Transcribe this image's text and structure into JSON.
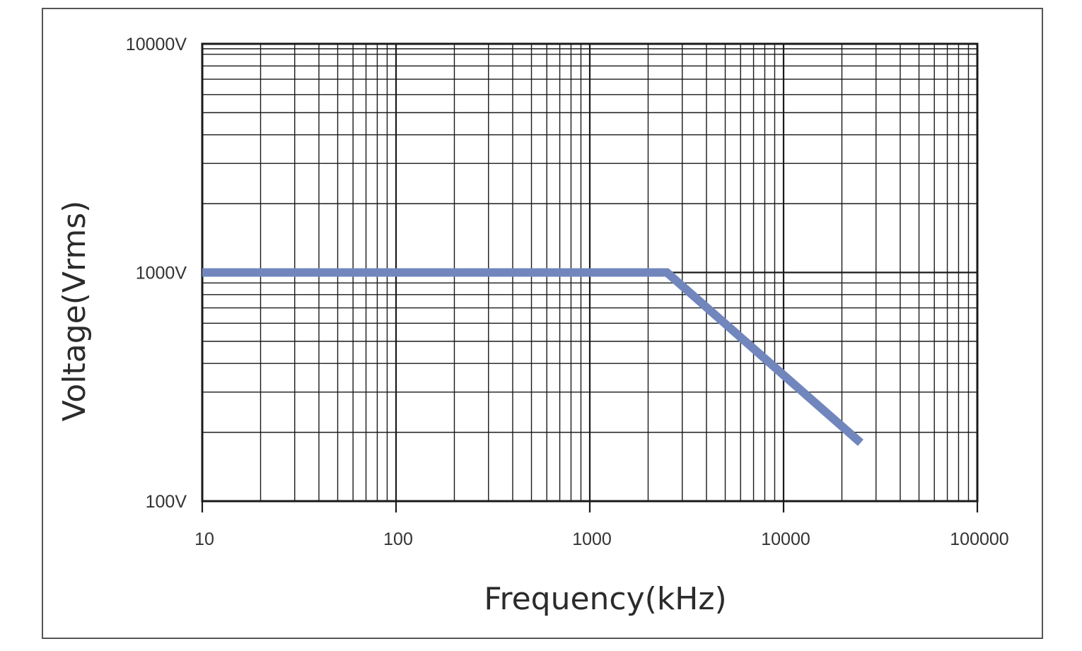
{
  "chart_data": {
    "type": "line",
    "xlabel": "Frequency(kHz)",
    "ylabel": "Voltage(Vrms)",
    "x_scale": "log",
    "y_scale": "log",
    "xlim": [
      10,
      100000
    ],
    "ylim": [
      100,
      10000
    ],
    "x_ticks": [
      {
        "value": 10,
        "label": "10"
      },
      {
        "value": 100,
        "label": "100"
      },
      {
        "value": 1000,
        "label": "1000"
      },
      {
        "value": 10000,
        "label": "10000"
      },
      {
        "value": 100000,
        "label": "100000"
      }
    ],
    "y_ticks": [
      {
        "value": 100,
        "label": "100V"
      },
      {
        "value": 1000,
        "label": "1000V"
      },
      {
        "value": 10000,
        "label": "10000V"
      }
    ],
    "grid": true,
    "series": [
      {
        "color": "#7086bd",
        "points": [
          {
            "x": 10,
            "y": 1000
          },
          {
            "x": 2500,
            "y": 1000
          },
          {
            "x": 25000,
            "y": 180
          }
        ]
      }
    ]
  }
}
